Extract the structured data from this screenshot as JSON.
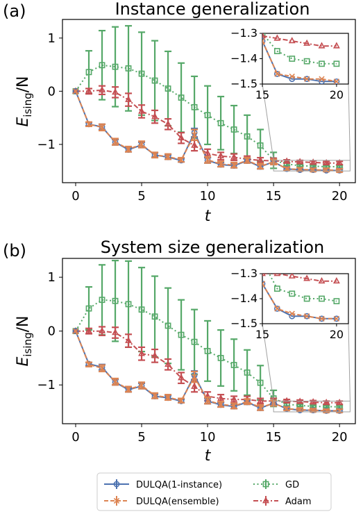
{
  "figure": {
    "legend": [
      {
        "label": "DULQA(1-instance)",
        "color": "#4c72b0",
        "marker": "circle",
        "dash": "solid"
      },
      {
        "label": "DULQA(ensemble)",
        "color": "#dd8452",
        "marker": "cross",
        "dash": "dashed"
      },
      {
        "label": "GD",
        "color": "#55a868",
        "marker": "square",
        "dash": "dotted"
      },
      {
        "label": "Adam",
        "color": "#c44e52",
        "marker": "triangle",
        "dash": "dashdot"
      }
    ]
  },
  "chart_data": [
    {
      "type": "line",
      "panel_label": "(a)",
      "title": "Instance generalization",
      "xlabel": "t",
      "ylabel_main": "E",
      "ylabel_sub": "ising",
      "ylabel_tail": "/N",
      "xlim": [
        -1,
        21.2
      ],
      "ylim": [
        -1.72,
        1.35
      ],
      "xticks": [
        0,
        5,
        10,
        15,
        20
      ],
      "yticks": [
        1,
        0,
        -1
      ],
      "ytick_labels": [
        "1",
        "0",
        "−1"
      ],
      "x": [
        0,
        1,
        2,
        3,
        4,
        5,
        6,
        7,
        8,
        9,
        10,
        11,
        12,
        13,
        14,
        15,
        16,
        17,
        18,
        19,
        20
      ],
      "series": [
        {
          "name": "DULQA(1-instance)",
          "color": "#4c72b0",
          "values": [
            0,
            -0.62,
            -0.67,
            -0.96,
            -1.1,
            -1.01,
            -1.2,
            -1.24,
            -1.3,
            -0.78,
            -1.3,
            -1.38,
            -1.4,
            -1.31,
            -1.42,
            -1.33,
            -1.46,
            -1.48,
            -1.48,
            -1.49,
            -1.49
          ],
          "errors": [
            0,
            0.03,
            0.05,
            0.05,
            0.04,
            0.05,
            0.04,
            0.04,
            0.03,
            0.08,
            0.05,
            0.04,
            0.04,
            0.04,
            0.04,
            0.04,
            0.02,
            0.02,
            0.02,
            0.02,
            0.02
          ]
        },
        {
          "name": "DULQA(ensemble)",
          "color": "#dd8452",
          "values": [
            0,
            -0.62,
            -0.68,
            -0.95,
            -1.09,
            -1.0,
            -1.2,
            -1.23,
            -1.29,
            -0.82,
            -1.29,
            -1.37,
            -1.39,
            -1.3,
            -1.41,
            -1.33,
            -1.46,
            -1.47,
            -1.48,
            -1.48,
            -1.49
          ],
          "errors": [
            0,
            0.04,
            0.06,
            0.06,
            0.05,
            0.06,
            0.05,
            0.05,
            0.04,
            0.1,
            0.06,
            0.05,
            0.05,
            0.05,
            0.05,
            0.05,
            0.03,
            0.03,
            0.03,
            0.03,
            0.03
          ]
        },
        {
          "name": "GD",
          "color": "#55a868",
          "values": [
            0,
            0.36,
            0.49,
            0.46,
            0.43,
            0.33,
            0.2,
            0.05,
            -0.12,
            -0.3,
            -0.45,
            -0.6,
            -0.72,
            -0.85,
            -1.02,
            -1.3,
            -1.37,
            -1.4,
            -1.41,
            -1.42,
            -1.42
          ],
          "errors": [
            0,
            0.4,
            0.65,
            0.75,
            0.8,
            0.78,
            0.75,
            0.7,
            0.65,
            0.58,
            0.55,
            0.5,
            0.45,
            0.4,
            0.3,
            0.15,
            0.03,
            0.02,
            0.02,
            0.02,
            0.02
          ]
        },
        {
          "name": "Adam",
          "color": "#c44e52",
          "values": [
            0,
            0,
            0.02,
            -0.02,
            -0.16,
            -0.38,
            -0.48,
            -0.62,
            -0.88,
            -1.02,
            -1.17,
            -1.22,
            -1.24,
            -1.28,
            -1.3,
            -1.31,
            -1.32,
            -1.33,
            -1.34,
            -1.35,
            -1.35
          ],
          "errors": [
            0,
            0.05,
            0.08,
            0.1,
            0.12,
            0.12,
            0.12,
            0.1,
            0.1,
            0.1,
            0.08,
            0.07,
            0.06,
            0.06,
            0.05,
            0.05,
            0.03,
            0.03,
            0.03,
            0.03,
            0.03
          ]
        }
      ],
      "inset": {
        "xlim": [
          15,
          20.8
        ],
        "ylim": [
          -1.5,
          -1.3
        ],
        "xticks": [
          15,
          20
        ],
        "yticks": [
          -1.3,
          -1.4,
          -1.5
        ],
        "ytick_labels": [
          "−1.3",
          "−1.4",
          "−1.5"
        ],
        "x_from": 15
      }
    },
    {
      "type": "line",
      "panel_label": "(b)",
      "title": "System size generalization",
      "xlabel": "t",
      "ylabel_main": "E",
      "ylabel_sub": "ising",
      "ylabel_tail": "/N",
      "xlim": [
        -1,
        21.2
      ],
      "ylim": [
        -1.72,
        1.35
      ],
      "xticks": [
        0,
        5,
        10,
        15,
        20
      ],
      "yticks": [
        1,
        0,
        -1
      ],
      "ytick_labels": [
        "1",
        "0",
        "−1"
      ],
      "x": [
        0,
        1,
        2,
        3,
        4,
        5,
        6,
        7,
        8,
        9,
        10,
        11,
        12,
        13,
        14,
        15,
        16,
        17,
        18,
        19,
        20
      ],
      "series": [
        {
          "name": "DULQA(1-instance)",
          "color": "#4c72b0",
          "values": [
            0,
            -0.61,
            -0.67,
            -0.95,
            -1.09,
            -1.02,
            -1.21,
            -1.24,
            -1.3,
            -0.82,
            -1.3,
            -1.37,
            -1.4,
            -1.32,
            -1.43,
            -1.34,
            -1.44,
            -1.47,
            -1.47,
            -1.48,
            -1.48
          ],
          "errors": [
            0,
            0.03,
            0.05,
            0.05,
            0.04,
            0.05,
            0.04,
            0.04,
            0.03,
            0.08,
            0.05,
            0.04,
            0.04,
            0.04,
            0.04,
            0.04,
            0.02,
            0.02,
            0.02,
            0.02,
            0.02
          ]
        },
        {
          "name": "DULQA(ensemble)",
          "color": "#dd8452",
          "values": [
            0,
            -0.62,
            -0.69,
            -0.94,
            -1.08,
            -1.01,
            -1.2,
            -1.23,
            -1.29,
            -0.85,
            -1.29,
            -1.36,
            -1.39,
            -1.31,
            -1.42,
            -1.34,
            -1.44,
            -1.46,
            -1.47,
            -1.48,
            -1.48
          ],
          "errors": [
            0,
            0.04,
            0.06,
            0.06,
            0.05,
            0.06,
            0.05,
            0.05,
            0.04,
            0.1,
            0.06,
            0.05,
            0.05,
            0.05,
            0.05,
            0.05,
            0.03,
            0.03,
            0.03,
            0.03,
            0.03
          ]
        },
        {
          "name": "GD",
          "color": "#55a868",
          "values": [
            0,
            0.42,
            0.58,
            0.56,
            0.5,
            0.4,
            0.27,
            0.1,
            -0.07,
            -0.2,
            -0.37,
            -0.5,
            -0.63,
            -0.77,
            -0.96,
            -1.25,
            -1.36,
            -1.38,
            -1.4,
            -1.4,
            -1.41
          ],
          "errors": [
            0,
            0.4,
            0.65,
            0.75,
            0.8,
            0.78,
            0.75,
            0.7,
            0.65,
            0.6,
            0.56,
            0.52,
            0.48,
            0.42,
            0.32,
            0.15,
            0.03,
            0.02,
            0.02,
            0.02,
            0.02
          ]
        },
        {
          "name": "Adam",
          "color": "#c44e52",
          "values": [
            0,
            0,
            0,
            -0.03,
            -0.18,
            -0.42,
            -0.46,
            -0.62,
            -0.87,
            -1.03,
            -1.21,
            -1.25,
            -1.27,
            -1.27,
            -1.3,
            -1.3,
            -1.3,
            -1.31,
            -1.32,
            -1.33,
            -1.33
          ],
          "errors": [
            0,
            0.05,
            0.08,
            0.1,
            0.12,
            0.12,
            0.12,
            0.1,
            0.1,
            0.1,
            0.08,
            0.07,
            0.06,
            0.06,
            0.05,
            0.05,
            0.03,
            0.03,
            0.03,
            0.03,
            0.03
          ]
        }
      ],
      "inset": {
        "xlim": [
          15,
          20.8
        ],
        "ylim": [
          -1.5,
          -1.3
        ],
        "xticks": [
          15,
          20
        ],
        "yticks": [
          -1.3,
          -1.4,
          -1.5
        ],
        "ytick_labels": [
          "−1.3",
          "−1.4",
          "−1.5"
        ],
        "x_from": 15
      }
    }
  ]
}
